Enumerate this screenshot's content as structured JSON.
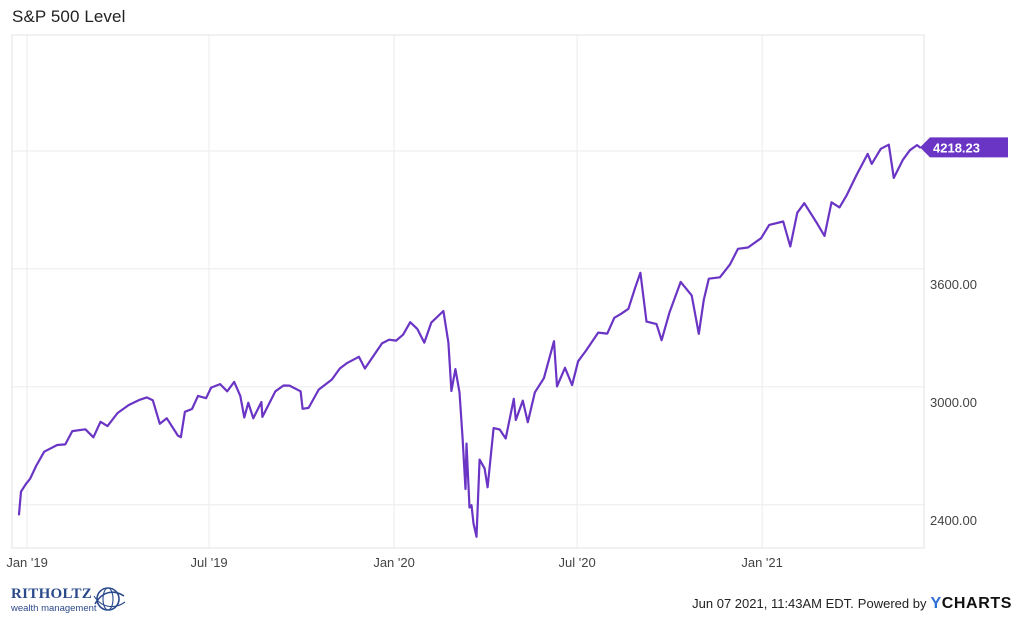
{
  "chart_data": {
    "type": "line",
    "title": "S&P 500 Level",
    "xlabel": "",
    "ylabel": "",
    "x_ticks": [
      "Jan '19",
      "Jul '19",
      "Jan '20",
      "Jul '20",
      "Jan '21"
    ],
    "y_ticks": [
      2400.0,
      3000.0,
      3600.0
    ],
    "y_tick_labels": [
      "2400.00",
      "3000.00",
      "3600.00"
    ],
    "ylim": [
      2180,
      4790
    ],
    "grid": true,
    "last_value_label": "4218.23",
    "series": [
      {
        "color": "#6a35c4",
        "points": [
          [
            "2018-12-24",
            2351
          ],
          [
            "2018-12-26",
            2467
          ],
          [
            "2018-12-31",
            2507
          ],
          [
            "2019-01-04",
            2532
          ],
          [
            "2019-01-10",
            2597
          ],
          [
            "2019-01-18",
            2670
          ],
          [
            "2019-01-31",
            2704
          ],
          [
            "2019-02-08",
            2707
          ],
          [
            "2019-02-15",
            2775
          ],
          [
            "2019-02-28",
            2784
          ],
          [
            "2019-03-08",
            2743
          ],
          [
            "2019-03-15",
            2822
          ],
          [
            "2019-03-22",
            2800
          ],
          [
            "2019-04-01",
            2867
          ],
          [
            "2019-04-12",
            2907
          ],
          [
            "2019-04-23",
            2934
          ],
          [
            "2019-04-30",
            2946
          ],
          [
            "2019-05-06",
            2932
          ],
          [
            "2019-05-13",
            2812
          ],
          [
            "2019-05-20",
            2840
          ],
          [
            "2019-05-31",
            2752
          ],
          [
            "2019-06-03",
            2744
          ],
          [
            "2019-06-07",
            2873
          ],
          [
            "2019-06-14",
            2887
          ],
          [
            "2019-06-20",
            2954
          ],
          [
            "2019-06-28",
            2942
          ],
          [
            "2019-07-03",
            2996
          ],
          [
            "2019-07-12",
            3014
          ],
          [
            "2019-07-19",
            2977
          ],
          [
            "2019-07-26",
            3025
          ],
          [
            "2019-08-01",
            2954
          ],
          [
            "2019-08-05",
            2844
          ],
          [
            "2019-08-09",
            2919
          ],
          [
            "2019-08-14",
            2840
          ],
          [
            "2019-08-22",
            2923
          ],
          [
            "2019-08-23",
            2847
          ],
          [
            "2019-09-05",
            2977
          ],
          [
            "2019-09-13",
            3007
          ],
          [
            "2019-09-19",
            3006
          ],
          [
            "2019-09-30",
            2977
          ],
          [
            "2019-10-02",
            2888
          ],
          [
            "2019-10-08",
            2893
          ],
          [
            "2019-10-18",
            2986
          ],
          [
            "2019-10-31",
            3037
          ],
          [
            "2019-11-08",
            3093
          ],
          [
            "2019-11-15",
            3120
          ],
          [
            "2019-11-27",
            3153
          ],
          [
            "2019-12-03",
            3093
          ],
          [
            "2019-12-13",
            3169
          ],
          [
            "2019-12-20",
            3221
          ],
          [
            "2019-12-27",
            3240
          ],
          [
            "2020-01-03",
            3235
          ],
          [
            "2020-01-10",
            3265
          ],
          [
            "2020-01-17",
            3329
          ],
          [
            "2020-01-24",
            3295
          ],
          [
            "2020-01-31",
            3225
          ],
          [
            "2020-02-07",
            3327
          ],
          [
            "2020-02-19",
            3386
          ],
          [
            "2020-02-24",
            3225
          ],
          [
            "2020-02-27",
            2979
          ],
          [
            "2020-03-02",
            3090
          ],
          [
            "2020-03-06",
            2972
          ],
          [
            "2020-03-09",
            2746
          ],
          [
            "2020-03-12",
            2480
          ],
          [
            "2020-03-13",
            2711
          ],
          [
            "2020-03-16",
            2386
          ],
          [
            "2020-03-18",
            2398
          ],
          [
            "2020-03-20",
            2305
          ],
          [
            "2020-03-23",
            2237
          ],
          [
            "2020-03-26",
            2630
          ],
          [
            "2020-03-31",
            2585
          ],
          [
            "2020-04-03",
            2489
          ],
          [
            "2020-04-09",
            2790
          ],
          [
            "2020-04-15",
            2783
          ],
          [
            "2020-04-21",
            2737
          ],
          [
            "2020-04-29",
            2939
          ],
          [
            "2020-05-01",
            2831
          ],
          [
            "2020-05-08",
            2930
          ],
          [
            "2020-05-13",
            2820
          ],
          [
            "2020-05-20",
            2972
          ],
          [
            "2020-05-29",
            3044
          ],
          [
            "2020-06-08",
            3232
          ],
          [
            "2020-06-11",
            3002
          ],
          [
            "2020-06-19",
            3097
          ],
          [
            "2020-06-26",
            3009
          ],
          [
            "2020-07-02",
            3130
          ],
          [
            "2020-07-10",
            3185
          ],
          [
            "2020-07-22",
            3276
          ],
          [
            "2020-07-31",
            3271
          ],
          [
            "2020-08-07",
            3351
          ],
          [
            "2020-08-14",
            3372
          ],
          [
            "2020-08-21",
            3397
          ],
          [
            "2020-08-28",
            3508
          ],
          [
            "2020-09-02",
            3580
          ],
          [
            "2020-09-08",
            3332
          ],
          [
            "2020-09-18",
            3319
          ],
          [
            "2020-09-23",
            3237
          ],
          [
            "2020-10-01",
            3380
          ],
          [
            "2020-10-12",
            3534
          ],
          [
            "2020-10-23",
            3465
          ],
          [
            "2020-10-30",
            3270
          ],
          [
            "2020-11-04",
            3443
          ],
          [
            "2020-11-09",
            3550
          ],
          [
            "2020-11-20",
            3557
          ],
          [
            "2020-11-30",
            3622
          ],
          [
            "2020-12-08",
            3702
          ],
          [
            "2020-12-18",
            3709
          ],
          [
            "2020-12-31",
            3756
          ],
          [
            "2021-01-08",
            3824
          ],
          [
            "2021-01-22",
            3841
          ],
          [
            "2021-01-29",
            3714
          ],
          [
            "2021-02-05",
            3886
          ],
          [
            "2021-02-12",
            3934
          ],
          [
            "2021-02-25",
            3829
          ],
          [
            "2021-03-04",
            3768
          ],
          [
            "2021-03-11",
            3939
          ],
          [
            "2021-03-19",
            3913
          ],
          [
            "2021-03-26",
            3974
          ],
          [
            "2021-04-05",
            4078
          ],
          [
            "2021-04-16",
            4185
          ],
          [
            "2021-04-20",
            4134
          ],
          [
            "2021-04-29",
            4211
          ],
          [
            "2021-05-07",
            4232
          ],
          [
            "2021-05-12",
            4063
          ],
          [
            "2021-05-21",
            4155
          ],
          [
            "2021-05-28",
            4204
          ],
          [
            "2021-06-04",
            4230
          ],
          [
            "2021-06-07",
            4218
          ]
        ]
      }
    ]
  },
  "footer": {
    "logo_name": "RITHOLTZ",
    "logo_sub": "wealth management",
    "timestamp_text": "Jun 07 2021, 11:43AM EDT.",
    "powered_by": "Powered by",
    "brand_y": "Y",
    "brand_rest": "CHARTS"
  }
}
